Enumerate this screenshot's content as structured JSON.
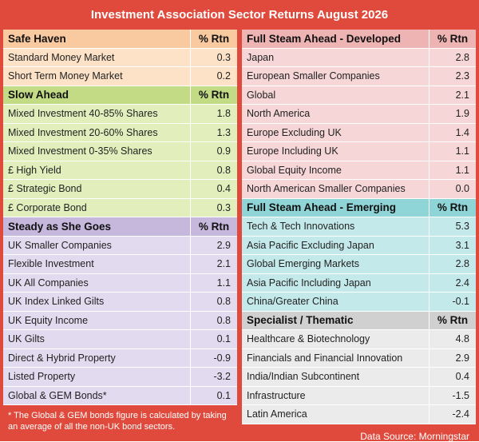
{
  "title": "Investment Association Sector Returns August  2026",
  "colors": {
    "frame": "#e04a3c",
    "safe_haven_header": "#f9c9a0",
    "safe_haven_row": "#fde2c7",
    "slow_ahead_header": "#c4db86",
    "slow_ahead_row": "#e2efbc",
    "steady_header": "#c5b8dc",
    "steady_row": "#e2daee",
    "developed_header": "#eeb3b3",
    "developed_row": "#f6d6d6",
    "emerging_header": "#8fd4d6",
    "emerging_row": "#c4e9ea",
    "specialist_header": "#d0d0d0",
    "specialist_row": "#ebebeb"
  },
  "left_sections": [
    {
      "key": "safe_haven",
      "title": "Safe Haven",
      "col_label": "% Rtn",
      "rows": [
        {
          "name": "Standard Money Market",
          "value": "0.3"
        },
        {
          "name": "Short Term Money Market",
          "value": "0.2"
        }
      ]
    },
    {
      "key": "slow_ahead",
      "title": "Slow Ahead",
      "col_label": "% Rtn",
      "rows": [
        {
          "name": "Mixed Investment 40-85% Shares",
          "value": "1.8"
        },
        {
          "name": "Mixed Investment 20-60% Shares",
          "value": "1.3"
        },
        {
          "name": "Mixed Investment 0-35% Shares",
          "value": "0.9"
        },
        {
          "name": "£ High Yield",
          "value": "0.8"
        },
        {
          "name": "£ Strategic Bond",
          "value": "0.4"
        },
        {
          "name": "£ Corporate Bond",
          "value": "0.3"
        }
      ]
    },
    {
      "key": "steady",
      "title": "Steady as She Goes",
      "col_label": "% Rtn",
      "rows": [
        {
          "name": "UK Smaller Companies",
          "value": "2.9"
        },
        {
          "name": "Flexible Investment",
          "value": "2.1"
        },
        {
          "name": "UK All Companies",
          "value": "1.1"
        },
        {
          "name": "UK Index Linked Gilts",
          "value": "0.8"
        },
        {
          "name": "UK Equity Income",
          "value": "0.8"
        },
        {
          "name": "UK Gilts",
          "value": "0.1"
        },
        {
          "name": "Direct & Hybrid Property",
          "value": "-0.9"
        },
        {
          "name": "Listed Property",
          "value": "-3.2"
        },
        {
          "name": "Global & GEM Bonds*",
          "value": "0.1"
        }
      ]
    }
  ],
  "right_sections": [
    {
      "key": "developed",
      "title": "Full Steam Ahead - Developed",
      "col_label": "% Rtn",
      "rows": [
        {
          "name": "Japan",
          "value": "2.8"
        },
        {
          "name": "European Smaller Companies",
          "value": "2.3"
        },
        {
          "name": "Global",
          "value": "2.1"
        },
        {
          "name": "North America",
          "value": "1.9"
        },
        {
          "name": "Europe Excluding UK",
          "value": "1.4"
        },
        {
          "name": "Europe Including UK",
          "value": "1.1"
        },
        {
          "name": "Global Equity Income",
          "value": "1.1"
        },
        {
          "name": "North American Smaller Companies",
          "value": "0.0"
        }
      ]
    },
    {
      "key": "emerging",
      "title": "Full Steam Ahead - Emerging",
      "col_label": "% Rtn",
      "rows": [
        {
          "name": "Tech & Tech Innovations",
          "value": "5.3"
        },
        {
          "name": "Asia Pacific Excluding Japan",
          "value": "3.1"
        },
        {
          "name": "Global Emerging Markets",
          "value": "2.8"
        },
        {
          "name": "Asia Pacific Including Japan",
          "value": "2.4"
        },
        {
          "name": "China/Greater China",
          "value": "-0.1"
        }
      ]
    },
    {
      "key": "specialist",
      "title": "Specialist / Thematic",
      "col_label": "% Rtn",
      "rows": [
        {
          "name": "Healthcare & Biotechnology",
          "value": "4.8"
        },
        {
          "name": "Financials and Financial Innovation",
          "value": "2.9"
        },
        {
          "name": "India/Indian Subcontinent",
          "value": "0.4"
        },
        {
          "name": "Infrastructure",
          "value": "-1.5"
        },
        {
          "name": "Latin America",
          "value": "-2.4"
        }
      ]
    }
  ],
  "footnote": "* The Global & GEM bonds figure is calculated by taking an average of all the non-UK bond sectors.",
  "source": "Data Source: Morningstar"
}
